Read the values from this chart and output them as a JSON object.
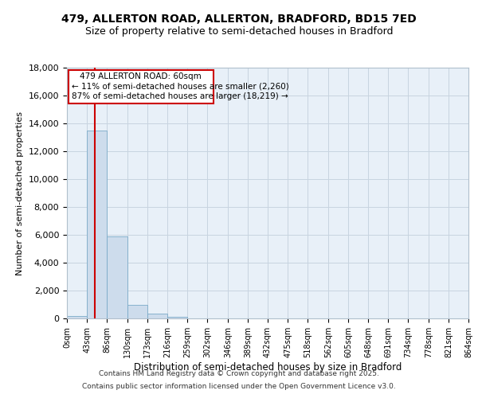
{
  "title1": "479, ALLERTON ROAD, ALLERTON, BRADFORD, BD15 7ED",
  "title2": "Size of property relative to semi-detached houses in Bradford",
  "xlabel": "Distribution of semi-detached houses by size in Bradford",
  "ylabel": "Number of semi-detached properties",
  "bin_edges": [
    0,
    43,
    86,
    130,
    173,
    216,
    259,
    302,
    346,
    389,
    432,
    475,
    518,
    562,
    605,
    648,
    691,
    734,
    778,
    821,
    864
  ],
  "bar_heights": [
    200,
    13500,
    5900,
    950,
    320,
    100,
    0,
    0,
    0,
    0,
    0,
    0,
    0,
    0,
    0,
    0,
    0,
    0,
    0,
    0
  ],
  "property_size": 60,
  "smaller_pct": "11%",
  "smaller_n": "2,260",
  "larger_pct": "87%",
  "larger_n": "18,219",
  "bar_color": "#cddcec",
  "bar_edge_color": "#7aaac8",
  "line_color": "#cc0000",
  "box_edge_color": "#cc0000",
  "grid_color": "#c8d4e0",
  "background_color": "#e8f0f8",
  "ylim": [
    0,
    18000
  ],
  "yticks": [
    0,
    2000,
    4000,
    6000,
    8000,
    10000,
    12000,
    14000,
    16000,
    18000
  ],
  "footer1": "Contains HM Land Registry data © Crown copyright and database right 2025.",
  "footer2": "Contains public sector information licensed under the Open Government Licence v3.0."
}
